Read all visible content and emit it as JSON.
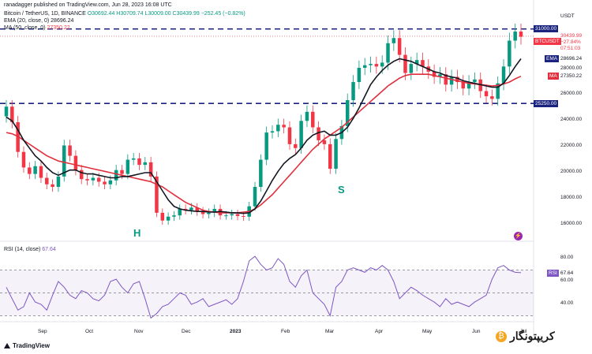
{
  "header": {
    "author": "ranadagger published on TradingView.com, Jun 28, 2023 16:08 UTC",
    "symbol_line": "Bitcoin / TetherUS, 1D, BINANCE",
    "ohlc": "O30692.44 H30709.74 L30009.00 C30439.99 −252.45 (−0.82%)",
    "ema_line": "EMA (20, close, 0)",
    "ema_value": "28696.24",
    "ma_line": "MA (50, close, 0)",
    "ma_value": "27350.22",
    "rsi_line": "RSI (14, close)",
    "rsi_value": "67.64"
  },
  "price_axis": {
    "unit": "USDT",
    "ticks": [
      "28000.00",
      "26000.00",
      "24000.00",
      "22000.00",
      "20000.00",
      "18000.00",
      "16000.00"
    ],
    "resistance_label": "31000.00",
    "support_label": "25250.00",
    "last_price_tag": {
      "symbol": "BTCUSDT",
      "price": "30439.99",
      "change": "−27.84%",
      "countdown": "07:51:03"
    },
    "ema_tag": {
      "name": "EMA",
      "value": "28696.24"
    },
    "ma_tag": {
      "name": "MA",
      "value": "27350.22"
    }
  },
  "rsi_axis": {
    "ticks": [
      "80.00",
      "60.00",
      "40.00"
    ],
    "tag": {
      "name": "RSI",
      "value": "67.64"
    }
  },
  "time_axis": {
    "labels": [
      "Sep",
      "Oct",
      "Nov",
      "Dec",
      "2023",
      "Feb",
      "Mar",
      "Apr",
      "May",
      "Jun",
      "Jul"
    ]
  },
  "annotations": {
    "head": "H",
    "shoulder": "S"
  },
  "footer": {
    "logo": "TradingView"
  },
  "watermark": {
    "text": "کریپتونگار"
  },
  "colors": {
    "up": "#089981",
    "down": "#f23645",
    "ema": "#131722",
    "ma": "#e0303e",
    "rsi": "#7e57c2",
    "level": "#1a237e"
  },
  "chart_data": [
    {
      "type": "candlestick",
      "series": [
        {
          "name": "BTCUSDT",
          "closes": [
            25000,
            23800,
            21500,
            20300,
            19800,
            20400,
            19500,
            19000,
            18800,
            19600,
            22000,
            21200,
            20100,
            19400,
            19300,
            19500,
            19200,
            19000,
            19300,
            20100,
            19800,
            20900,
            21000,
            20500,
            20700,
            19600,
            16800,
            16200,
            16500,
            16600,
            17100,
            17000,
            17200,
            16900,
            16700,
            16800,
            17100,
            16600,
            16600,
            16700,
            16550,
            16500,
            17300,
            18800,
            20900,
            23000,
            23100,
            23600,
            23400,
            22100,
            21800,
            23900,
            24600,
            23400,
            22400,
            22100,
            20200,
            22500,
            23500,
            25500,
            26900,
            28000,
            28200,
            28300,
            28100,
            28400,
            29900,
            30300,
            29000,
            27600,
            28300,
            28600,
            28100,
            27700,
            27300,
            27500,
            26700,
            27300,
            26900,
            26400,
            26900,
            27100,
            26200,
            25800,
            25600,
            26800,
            28100,
            30100,
            30800,
            30400
          ]
        },
        {
          "name": "EMA",
          "values": [
            24200,
            23900,
            23200,
            22400,
            21800,
            21200,
            20800,
            20300,
            19900,
            19700,
            19900,
            20100,
            20100,
            19900,
            19800,
            19800,
            19700,
            19600,
            19500,
            19500,
            19600,
            19600,
            19700,
            19800,
            19900,
            19900,
            19200,
            18500,
            17800,
            17300,
            17100,
            17000,
            16950,
            16900,
            16900,
            16850,
            16850,
            16900,
            16850,
            16800,
            16800,
            16750,
            16800,
            17100,
            17700,
            18500,
            19300,
            20000,
            20600,
            21000,
            21300,
            21800,
            22400,
            22800,
            23000,
            23100,
            22800,
            22800,
            23000,
            23400,
            24100,
            24900,
            25800,
            26700,
            27300,
            27800,
            28200,
            28500,
            28700,
            28600,
            28500,
            28300,
            28100,
            27900,
            27700,
            27600,
            27400,
            27300,
            27200,
            27000,
            26900,
            26800,
            26700,
            26600,
            26500,
            26500,
            26800,
            27400,
            28100,
            28700
          ]
        },
        {
          "name": "MA",
          "values": [
            23000,
            22900,
            22700,
            22400,
            22100,
            21800,
            21500,
            21200,
            21000,
            20800,
            20700,
            20600,
            20500,
            20400,
            20300,
            20200,
            20100,
            20000,
            19900,
            19800,
            19700,
            19600,
            19500,
            19400,
            19300,
            19200,
            19000,
            18800,
            18500,
            18200,
            17900,
            17600,
            17400,
            17200,
            17000,
            16900,
            16850,
            16800,
            16800,
            16800,
            16800,
            16850,
            16900,
            17100,
            17400,
            17800,
            18200,
            18700,
            19200,
            19700,
            20200,
            20700,
            21200,
            21700,
            22100,
            22500,
            22800,
            23100,
            23400,
            23800,
            24200,
            24600,
            25000,
            25400,
            25800,
            26200,
            26600,
            26900,
            27200,
            27400,
            27500,
            27500,
            27500,
            27500,
            27400,
            27300,
            27200,
            27100,
            27000,
            26900,
            26800,
            26750,
            26700,
            26650,
            26600,
            26650,
            26750,
            26900,
            27150,
            27350
          ]
        }
      ],
      "levels": [
        {
          "label": "31000.00",
          "value": 31000
        },
        {
          "label": "25250.00",
          "value": 25250
        }
      ],
      "ylim": [
        15000,
        32000
      ]
    },
    {
      "type": "line",
      "series": [
        {
          "name": "RSI",
          "values": [
            55,
            45,
            35,
            38,
            50,
            42,
            40,
            35,
            48,
            60,
            55,
            48,
            45,
            52,
            50,
            45,
            43,
            48,
            60,
            62,
            55,
            50,
            58,
            60,
            45,
            28,
            32,
            38,
            40,
            45,
            50,
            48,
            40,
            42,
            45,
            38,
            40,
            42,
            44,
            40,
            45,
            60,
            78,
            82,
            75,
            70,
            72,
            80,
            75,
            60,
            55,
            65,
            70,
            50,
            45,
            40,
            30,
            55,
            60,
            70,
            72,
            70,
            68,
            72,
            70,
            74,
            70,
            60,
            45,
            50,
            55,
            52,
            48,
            45,
            42,
            38,
            45,
            40,
            42,
            40,
            38,
            42,
            45,
            48,
            62,
            72,
            74,
            70,
            68,
            67.64
          ]
        }
      ],
      "ylim": [
        25,
        90
      ]
    }
  ]
}
